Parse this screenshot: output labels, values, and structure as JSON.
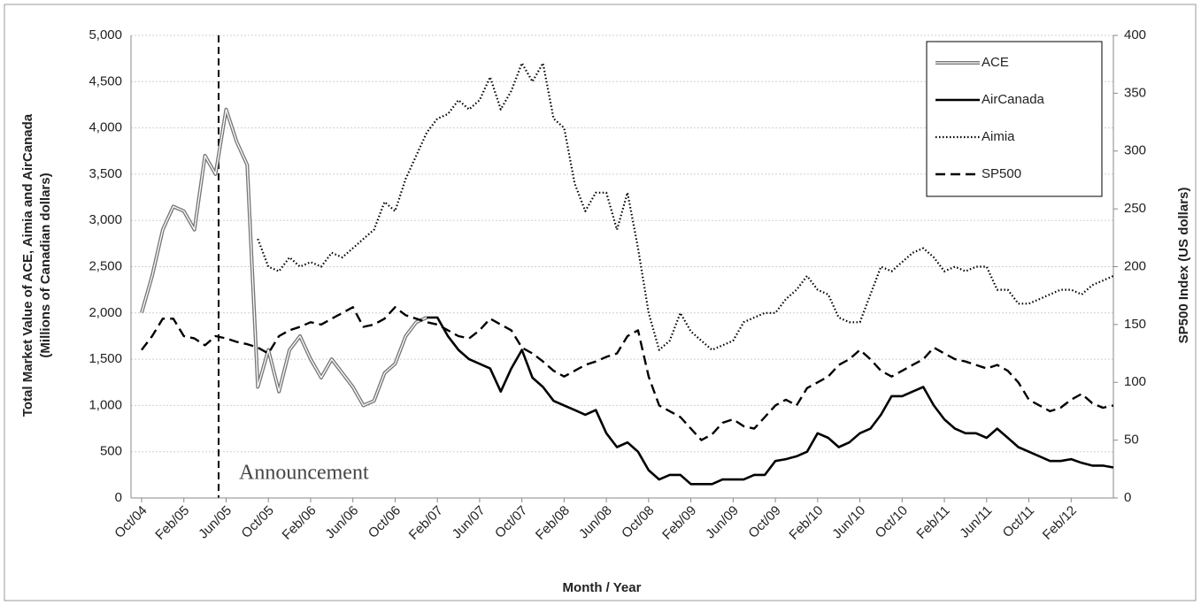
{
  "chart_data": {
    "type": "line",
    "xlabel": "Month / Year",
    "ylabel": [
      "Total Market Value of ACE, Aimia and AirCanada",
      "(Millions of Canadian dollars)"
    ],
    "y2label": "SP500 Index (US dollars)",
    "annotation": {
      "text": "Announcement"
    },
    "categories": [
      "Oct/04",
      null,
      null,
      null,
      "Feb/05",
      null,
      null,
      null,
      "Jun/05",
      null,
      null,
      null,
      "Oct/05",
      null,
      null,
      null,
      "Feb/06",
      null,
      null,
      null,
      "Jun/06",
      null,
      null,
      null,
      "Oct/06",
      null,
      null,
      null,
      "Feb/07",
      null,
      null,
      null,
      "Jun/07",
      null,
      null,
      null,
      "Oct/07",
      null,
      null,
      null,
      "Feb/08",
      null,
      null,
      null,
      "Jun/08",
      null,
      null,
      null,
      "Oct/08",
      null,
      null,
      null,
      "Feb/09",
      null,
      null,
      null,
      "Jun/09",
      null,
      null,
      null,
      "Oct/09",
      null,
      null,
      null,
      "Feb/10",
      null,
      null,
      null,
      "Jun/10",
      null,
      null,
      null,
      "Oct/10",
      null,
      null,
      null,
      "Feb/11",
      null,
      null,
      null,
      "Jun/11",
      null,
      null,
      null,
      "Oct/11",
      null,
      null,
      null,
      "Feb/12",
      null,
      null,
      null,
      null
    ],
    "ylim": [
      0,
      5000
    ],
    "yticks": [
      0,
      500,
      {
        "value": 1000,
        "label": "1,000"
      },
      {
        "value": 1500,
        "label": "1,500"
      },
      {
        "value": 2000,
        "label": "2,000"
      },
      {
        "value": 2500,
        "label": "2,500"
      },
      {
        "value": 3000,
        "label": "3,000"
      },
      {
        "value": 3500,
        "label": "3,500"
      },
      {
        "value": 4000,
        "label": "4,000"
      },
      {
        "value": 4500,
        "label": "4,500"
      },
      {
        "value": 5000,
        "label": "5,000"
      }
    ],
    "y2lim": [
      0,
      400
    ],
    "y2ticks": [
      0,
      50,
      100,
      150,
      200,
      250,
      300,
      350,
      400
    ],
    "grid": true,
    "legend": "upper right",
    "series": [
      {
        "name": "ACE",
        "color": "#777777",
        "style": "double",
        "values": [
          2000,
          2400,
          2900,
          3150,
          3100,
          2900,
          3700,
          3500,
          4200,
          3850,
          3600,
          1200,
          1600,
          1150,
          1600,
          1750,
          1500,
          1300,
          1500,
          1350,
          1200,
          1000,
          1050,
          1350,
          1450,
          1750,
          1900,
          1950,
          null,
          null,
          null,
          null,
          null,
          null,
          null,
          null,
          null,
          null,
          null,
          null,
          null,
          null,
          null,
          null,
          null,
          null,
          null,
          null,
          null,
          null,
          null,
          null,
          null,
          null,
          null,
          null,
          null,
          null,
          null,
          null,
          null,
          null,
          null,
          null,
          null,
          null,
          null,
          null,
          null,
          null,
          null,
          null,
          null,
          null,
          null,
          null,
          null,
          null,
          null,
          null,
          null,
          null,
          null,
          null,
          null,
          null,
          null,
          null,
          null,
          null,
          null,
          null,
          null
        ]
      },
      {
        "name": "AirCanada",
        "color": "#000000",
        "style": "solid",
        "values": [
          null,
          null,
          null,
          null,
          null,
          null,
          null,
          null,
          null,
          null,
          null,
          null,
          null,
          null,
          null,
          null,
          null,
          null,
          null,
          null,
          null,
          null,
          null,
          null,
          null,
          null,
          null,
          1950,
          1950,
          1750,
          1600,
          1500,
          1450,
          1400,
          1150,
          1400,
          1600,
          1300,
          1200,
          1050,
          1000,
          950,
          900,
          950,
          700,
          550,
          600,
          500,
          300,
          200,
          250,
          250,
          150,
          150,
          150,
          200,
          200,
          200,
          250,
          250,
          400,
          420,
          450,
          500,
          700,
          650,
          550,
          600,
          700,
          750,
          900,
          1100,
          1100,
          1150,
          1200,
          1000,
          850,
          750,
          700,
          700,
          650,
          750,
          650,
          550,
          500,
          450,
          400,
          400,
          420,
          380,
          350,
          350,
          330
        ]
      },
      {
        "name": "Aimia",
        "color": "#000000",
        "style": "dotted",
        "values": [
          null,
          null,
          null,
          null,
          null,
          null,
          null,
          null,
          null,
          null,
          null,
          2800,
          2500,
          2450,
          2600,
          2500,
          2550,
          2500,
          2650,
          2600,
          2700,
          2800,
          2900,
          3200,
          3100,
          3450,
          3700,
          3950,
          4100,
          4150,
          4300,
          4200,
          4300,
          4550,
          4200,
          4400,
          4700,
          4500,
          4700,
          4100,
          4000,
          3400,
          3100,
          3300,
          3300,
          2900,
          3300,
          2700,
          2000,
          1600,
          1700,
          2000,
          1800,
          1700,
          1600,
          1650,
          1700,
          1900,
          1950,
          2000,
          2000,
          2150,
          2250,
          2400,
          2250,
          2200,
          1950,
          1900,
          1900,
          2200,
          2500,
          2450,
          2550,
          2650,
          2700,
          2600,
          2450,
          2500,
          2450,
          2500,
          2500,
          2250,
          2250,
          2100,
          2100,
          2150,
          2200,
          2250,
          2250,
          2200,
          2300,
          2350,
          2400
        ]
      },
      {
        "name": "SP500",
        "color": "#000000",
        "style": "dashed",
        "axis": "y2",
        "values": [
          128,
          140,
          155,
          155,
          140,
          138,
          132,
          140,
          138,
          135,
          133,
          130,
          125,
          140,
          145,
          148,
          152,
          150,
          155,
          160,
          165,
          148,
          150,
          155,
          165,
          158,
          155,
          152,
          150,
          145,
          140,
          138,
          145,
          155,
          150,
          145,
          130,
          125,
          118,
          110,
          105,
          110,
          115,
          118,
          122,
          125,
          140,
          145,
          105,
          80,
          75,
          70,
          60,
          50,
          55,
          65,
          68,
          62,
          60,
          70,
          80,
          85,
          80,
          95,
          100,
          105,
          115,
          120,
          128,
          120,
          110,
          105,
          110,
          115,
          120,
          130,
          125,
          120,
          118,
          115,
          112,
          115,
          110,
          100,
          85,
          80,
          75,
          78,
          85,
          90,
          82,
          78,
          80
        ]
      }
    ]
  }
}
